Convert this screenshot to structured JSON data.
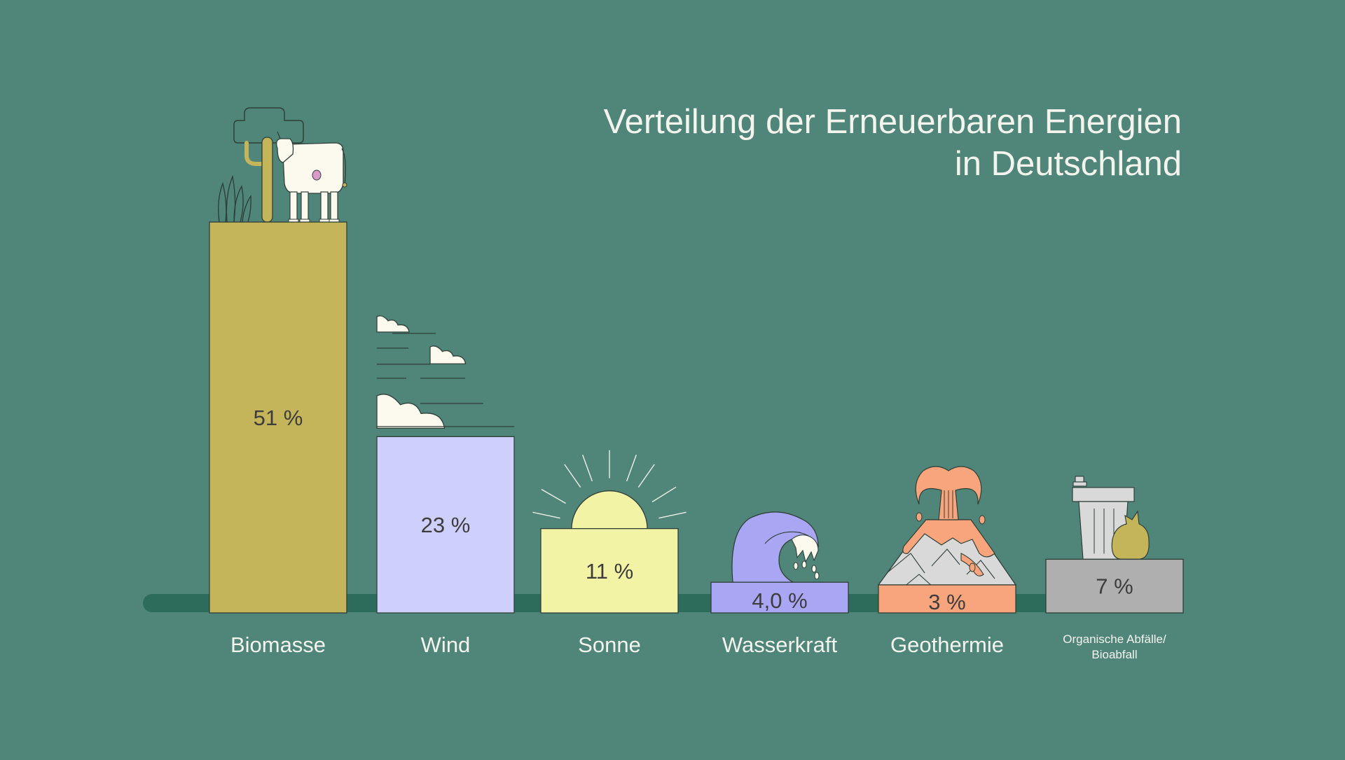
{
  "chart_data": {
    "type": "bar",
    "title_lines": [
      "Verteilung der Erneuerbaren Energien",
      "in Deutschland"
    ],
    "xlabel": "",
    "ylabel": "",
    "ylim": [
      0,
      51
    ],
    "grid": false,
    "legend": "none",
    "categories": [
      [
        "Biomasse"
      ],
      [
        "Wind"
      ],
      [
        "Sonne"
      ],
      [
        "Wasserkraft"
      ],
      [
        "Geothermie"
      ],
      [
        "Organische Abfälle/",
        "Bioabfall"
      ]
    ],
    "values": [
      51,
      23,
      11,
      4,
      3,
      7
    ],
    "value_labels": [
      "51 %",
      "23 %",
      "11 %",
      "4,0 %",
      "3 %",
      "7 %"
    ],
    "colors": [
      "#C4B45A",
      "#CFCFFB",
      "#F3F3A6",
      "#A9A6F4",
      "#F8A47C",
      "#AFAFAF"
    ],
    "icons": [
      "plants-cow-icon",
      "clouds-wind-icon",
      "sun-icon",
      "wave-icon",
      "volcano-icon",
      "trash-bin-icon"
    ]
  },
  "colors": {
    "background": "#50867A",
    "baseline": "#2D6B5B",
    "outline": "#2F3F37"
  }
}
